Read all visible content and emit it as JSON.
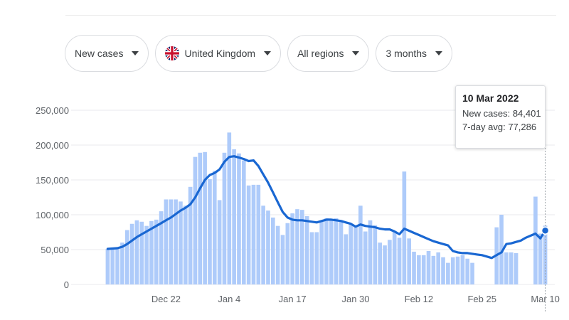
{
  "filters": {
    "metric": "New cases",
    "country": "United Kingdom",
    "region": "All regions",
    "range": "3 months"
  },
  "icons": {
    "country_flag": "uk-flag-icon",
    "dropdown": "caret-down-icon"
  },
  "colors": {
    "bar": "#aecbfa",
    "line": "#1967d2",
    "grid": "#e8eaed",
    "axis_text": "#5f6368"
  },
  "tooltip": {
    "date": "10 Mar 2022",
    "cases_label": "New cases:",
    "cases_value": "84,401",
    "avg_label": "7-day avg:",
    "avg_value": "77,286"
  },
  "chart_data": {
    "type": "bar",
    "title": "",
    "xlabel": "",
    "ylabel": "",
    "ylim": [
      0,
      250000
    ],
    "yticks": [
      0,
      50000,
      100000,
      150000,
      200000,
      250000
    ],
    "ytick_labels": [
      "0",
      "50,000",
      "100,000",
      "150,000",
      "200,000",
      "250,000"
    ],
    "xtick_labels": [
      {
        "label": "Dec 22",
        "date": "2021-12-22"
      },
      {
        "label": "Jan 4",
        "date": "2022-01-04"
      },
      {
        "label": "Jan 17",
        "date": "2022-01-17"
      },
      {
        "label": "Jan 30",
        "date": "2022-01-30"
      },
      {
        "label": "Feb 12",
        "date": "2022-02-12"
      },
      {
        "label": "Feb 25",
        "date": "2022-02-25"
      },
      {
        "label": "Mar 10",
        "date": "2022-03-10"
      }
    ],
    "x_start": "2021-12-10",
    "x_end": "2022-03-10",
    "grid": true,
    "series": [
      {
        "name": "New cases",
        "type": "bar",
        "values": [
          51000,
          52000,
          51000,
          60000,
          78000,
          87000,
          92000,
          90000,
          84000,
          91000,
          93000,
          105000,
          122000,
          122000,
          122000,
          119000,
          113000,
          140000,
          183000,
          189000,
          190000,
          151000,
          163000,
          121000,
          189000,
          218000,
          194000,
          188000,
          178000,
          142000,
          143000,
          143000,
          113000,
          106000,
          96000,
          84000,
          71000,
          88000,
          102000,
          108000,
          107000,
          98000,
          75000,
          75000,
          90000,
          95000,
          93000,
          95000,
          92000,
          72000,
          86000,
          84000,
          113000,
          76000,
          92000,
          85000,
          60000,
          56000,
          64000,
          76000,
          67000,
          162000,
          66000,
          47000,
          42000,
          42000,
          48000,
          41000,
          46000,
          39000,
          31000,
          39000,
          40000,
          42000,
          37000,
          31000,
          null,
          null,
          null,
          null,
          82000,
          100000,
          46000,
          46000,
          45000,
          null,
          null,
          null,
          126000,
          73000,
          84401
        ]
      },
      {
        "name": "7-day avg",
        "type": "line",
        "values": [
          51000,
          51500,
          52000,
          54000,
          58000,
          63000,
          68000,
          72000,
          76000,
          80000,
          84000,
          88000,
          92000,
          96000,
          101000,
          106000,
          110000,
          115000,
          125000,
          138000,
          150000,
          157000,
          160000,
          165000,
          176000,
          183000,
          184000,
          182000,
          180000,
          177000,
          178000,
          170000,
          158000,
          146000,
          132000,
          118000,
          104000,
          96000,
          93000,
          92000,
          92000,
          91000,
          90000,
          89000,
          91000,
          93000,
          93000,
          92000,
          91000,
          89000,
          87000,
          83000,
          86000,
          84000,
          83000,
          82000,
          80000,
          79000,
          79000,
          76000,
          72000,
          80000,
          77000,
          74000,
          71000,
          68000,
          65000,
          62000,
          60000,
          58000,
          56000,
          48000,
          46000,
          45000,
          45000,
          44000,
          43000,
          42000,
          40000,
          38000,
          42000,
          46000,
          58000,
          59000,
          61000,
          63000,
          67000,
          70000,
          73000,
          66000,
          77286
        ]
      }
    ]
  }
}
